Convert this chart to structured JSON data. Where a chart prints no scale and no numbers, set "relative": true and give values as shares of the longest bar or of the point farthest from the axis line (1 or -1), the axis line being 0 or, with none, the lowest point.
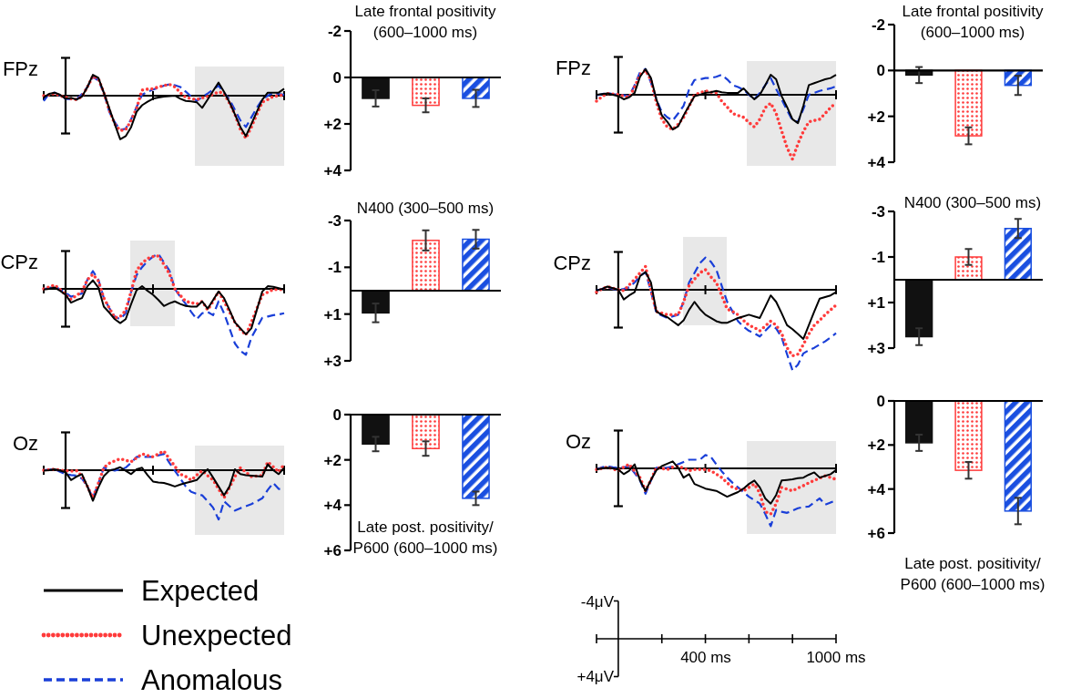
{
  "chart_data": [
    {
      "type": "line",
      "title": "FPz",
      "relative": true,
      "legend": "bottom left",
      "categories": [
        null,
        null,
        null,
        null,
        null,
        null,
        null,
        null,
        null,
        null,
        null,
        null,
        null,
        null,
        null,
        null,
        null,
        null,
        null,
        null,
        null,
        null,
        null,
        null,
        null,
        null,
        null,
        null,
        null,
        null,
        null,
        null,
        null,
        null,
        null,
        null,
        null,
        null,
        null,
        null,
        null,
        null,
        null,
        null,
        null
      ],
      "series": [
        {
          "name": "Expected",
          "color": "#000000",
          "line_style": "solid",
          "values": [
            -0.04,
            0.04,
            0.07,
            0.02,
            -0.07,
            -0.05,
            -0.09,
            -0.02,
            0.2,
            0.48,
            0.41,
            0.07,
            -0.29,
            -0.65,
            -1,
            -0.93,
            -0.72,
            -0.37,
            -0.22,
            -0.14,
            -0.07,
            -0.04,
            -0.02,
            -0.01,
            0,
            -0.07,
            -0.12,
            -0.13,
            -0.15,
            -0.28,
            -0.09,
            0.11,
            0.3,
            0.09,
            -0.15,
            -0.43,
            -0.72,
            -0.93,
            -0.65,
            -0.37,
            -0.09,
            0.07,
            0.07,
            0.07,
            0.16
          ]
        },
        {
          "name": "Unexpected",
          "color": "#ff3b3b",
          "line_style": "dotted",
          "values": [
            0,
            0.02,
            0.05,
            0,
            -0.04,
            -0.07,
            -0.09,
            -0.02,
            0.2,
            0.45,
            0.39,
            0.07,
            -0.33,
            -0.65,
            -0.8,
            -0.78,
            -0.57,
            -0.29,
            0.13,
            0.15,
            0.16,
            0.2,
            0.23,
            0.26,
            0.2,
            0.07,
            -0.04,
            -0.07,
            -0.09,
            -0.05,
            -0.02,
            0.03,
            0.09,
            0.05,
            -0.17,
            -0.43,
            -0.78,
            -0.98,
            -0.72,
            -0.43,
            -0.15,
            -0.09,
            -0.02,
            0,
            0.02
          ]
        },
        {
          "name": "Anomalous",
          "color": "#1a3fd8",
          "line_style": "dashed",
          "values": [
            -0.12,
            0.05,
            0.07,
            0,
            -0.07,
            -0.08,
            -0.09,
            0.04,
            0.2,
            0.43,
            0.35,
            0.07,
            -0.37,
            -0.61,
            -0.78,
            -0.76,
            -0.54,
            -0.26,
            0.02,
            0.09,
            0.14,
            0.18,
            0.23,
            0.26,
            0.24,
            0.2,
            0.09,
            -0.02,
            -0.12,
            -0.03,
            0.05,
            0.14,
            0.23,
            0.07,
            -0.09,
            -0.33,
            -0.57,
            -0.72,
            -0.5,
            -0.28,
            -0.09,
            0,
            0.07,
            0.04,
            0.02
          ]
        }
      ]
    },
    {
      "type": "bar",
      "title": "Late frontal positivity\n(600–1000 ms)",
      "categories": [
        null,
        null,
        null
      ],
      "values": [
        0.9,
        1.2,
        0.9
      ],
      "errors": [
        0.35,
        0.3,
        0.37
      ],
      "colors": [
        "#111111",
        "#ff3b3b",
        "#1a4fe0"
      ],
      "ylim": [
        4,
        -2
      ],
      "yticks": [
        -2,
        0,
        {
          "value": 2,
          "label": "+2"
        },
        {
          "value": 4,
          "label": "+4"
        }
      ]
    },
    {
      "type": "line",
      "title": "FPz",
      "relative": true,
      "categories": [
        null,
        null,
        null,
        null,
        null,
        null,
        null,
        null,
        null,
        null,
        null,
        null,
        null,
        null,
        null,
        null,
        null,
        null,
        null,
        null,
        null,
        null,
        null,
        null,
        null,
        null,
        null,
        null,
        null,
        null,
        null,
        null,
        null,
        null,
        null,
        null,
        null,
        null,
        null,
        null,
        null,
        null,
        null,
        null,
        null
      ],
      "series": [
        {
          "color": "#000000",
          "line_style": "solid",
          "values": [
            0,
            0.01,
            0.02,
            0,
            -0.02,
            -0.07,
            -0.04,
            0.03,
            0.28,
            0.4,
            0.26,
            -0.07,
            -0.32,
            -0.42,
            -0.54,
            -0.49,
            -0.32,
            -0.17,
            -0.02,
            0,
            0.03,
            0.04,
            0.06,
            0.04,
            0.03,
            0.03,
            0.03,
            0.1,
            0.01,
            -0.07,
            0,
            0.15,
            0.31,
            0.24,
            -0.02,
            -0.19,
            -0.38,
            -0.44,
            -0.17,
            0.15,
            0.18,
            0.21,
            0.24,
            0.26,
            0.31
          ]
        },
        {
          "color": "#ff3b3b",
          "line_style": "dotted",
          "values": [
            -0.1,
            -0.03,
            0.02,
            0.01,
            0,
            -0.02,
            -0.04,
            0.12,
            0.31,
            0.38,
            0.23,
            -0.12,
            -0.38,
            -0.5,
            -0.54,
            -0.46,
            -0.35,
            -0.18,
            0,
            0.03,
            0.06,
            0.04,
            0.03,
            -0.1,
            -0.19,
            -0.29,
            -0.32,
            -0.35,
            -0.43,
            -0.5,
            -0.38,
            -0.2,
            -0.13,
            -0.29,
            -0.56,
            -0.82,
            -1,
            -0.76,
            -0.57,
            -0.42,
            -0.4,
            -0.38,
            -0.29,
            -0.2,
            -0.12
          ]
        },
        {
          "color": "#1a3fd8",
          "line_style": "dashed",
          "values": [
            -0.01,
            0.01,
            0.03,
            0.01,
            0,
            -0.01,
            -0.02,
            0.15,
            0.35,
            0.4,
            0.19,
            -0.07,
            -0.27,
            -0.35,
            -0.4,
            -0.29,
            -0.17,
            0.08,
            0.23,
            0.24,
            0.26,
            0.26,
            0.28,
            0.31,
            0.24,
            0.15,
            0.12,
            0.08,
            0,
            -0.07,
            0.03,
            0.15,
            0.26,
            0.09,
            -0.07,
            -0.24,
            -0.4,
            -0.42,
            -0.22,
            0,
            0.03,
            0.06,
            0.08,
            0.1,
            0.13
          ]
        }
      ]
    },
    {
      "type": "bar",
      "title": "Late frontal positivity\n(600–1000 ms)",
      "categories": [
        null,
        null,
        null
      ],
      "values": [
        0.2,
        2.85,
        0.65
      ],
      "errors": [
        0.35,
        0.37,
        0.42
      ],
      "colors": [
        "#111111",
        "#ff3b3b",
        "#1a4fe0"
      ],
      "ylim": [
        4,
        -2
      ],
      "yticks": [
        -2,
        0,
        {
          "value": 2,
          "label": "+2"
        },
        {
          "value": 4,
          "label": "+4"
        }
      ]
    },
    {
      "type": "line",
      "title": "CPz",
      "relative": true,
      "categories": [
        null,
        null,
        null,
        null,
        null,
        null,
        null,
        null,
        null,
        null,
        null,
        null,
        null,
        null,
        null,
        null,
        null,
        null,
        null,
        null,
        null,
        null,
        null,
        null,
        null,
        null,
        null,
        null,
        null,
        null,
        null,
        null,
        null,
        null,
        null,
        null,
        null,
        null,
        null,
        null,
        null,
        null,
        null,
        null,
        null
      ],
      "series": [
        {
          "color": "#000000",
          "line_style": "solid",
          "values": [
            -0.01,
            0,
            0.02,
            -0.03,
            -0.09,
            -0.21,
            -0.17,
            -0.14,
            0.04,
            0.13,
            0.02,
            -0.27,
            -0.36,
            -0.46,
            -0.52,
            -0.46,
            -0.23,
            -0.02,
            0.04,
            -0.03,
            -0.09,
            -0.17,
            -0.26,
            -0.22,
            -0.19,
            -0.23,
            -0.26,
            -0.27,
            -0.27,
            -0.19,
            -0.3,
            -0.17,
            -0.04,
            -0.14,
            -0.32,
            -0.51,
            -0.6,
            -0.69,
            -0.6,
            -0.32,
            -0.04,
            0.04,
            0.03,
            0.01,
            -0.01
          ]
        },
        {
          "color": "#ff3b3b",
          "line_style": "dotted",
          "values": [
            0,
            0.03,
            0.06,
            -0.01,
            -0.09,
            -0.16,
            -0.1,
            -0.04,
            0.14,
            0.22,
            0.12,
            -0.14,
            -0.29,
            -0.44,
            -0.42,
            -0.33,
            -0.04,
            0.28,
            0.39,
            0.46,
            0.49,
            0.5,
            0.37,
            0.23,
            0,
            -0.1,
            -0.19,
            -0.21,
            -0.23,
            -0.19,
            -0.32,
            -0.19,
            -0.04,
            -0.19,
            -0.35,
            -0.51,
            -0.62,
            -0.7,
            -0.51,
            -0.3,
            -0.09,
            -0.05,
            -0.01,
            -0.01,
            -0.01
          ]
        },
        {
          "color": "#1a3fd8",
          "line_style": "dashed",
          "values": [
            0,
            0.01,
            0.04,
            -0.01,
            -0.06,
            -0.12,
            -0.09,
            -0.07,
            0.14,
            0.27,
            0.14,
            -0.14,
            -0.29,
            -0.42,
            -0.46,
            -0.37,
            -0.04,
            0.21,
            0.33,
            0.42,
            0.49,
            0.53,
            0.4,
            0.28,
            0,
            -0.12,
            -0.23,
            -0.35,
            -0.46,
            -0.37,
            -0.35,
            -0.4,
            -0.19,
            -0.37,
            -0.6,
            -0.83,
            -0.94,
            -1,
            -0.74,
            -0.59,
            -0.44,
            -0.42,
            -0.4,
            -0.39,
            -0.37
          ]
        }
      ]
    },
    {
      "type": "bar",
      "title": "N400 (300–500 ms)",
      "categories": [
        null,
        null,
        null
      ],
      "values": [
        0.95,
        -2.15,
        -2.2
      ],
      "errors": [
        0.4,
        0.43,
        0.4
      ],
      "colors": [
        "#111111",
        "#ff3b3b",
        "#1a4fe0"
      ],
      "ylim": [
        3,
        -3
      ],
      "yticks": [
        -3,
        -1,
        {
          "value": 1,
          "label": "+1"
        },
        {
          "value": 3,
          "label": "+3"
        }
      ]
    },
    {
      "type": "line",
      "title": "CPz",
      "relative": true,
      "categories": [
        null,
        null,
        null,
        null,
        null,
        null,
        null,
        null,
        null,
        null,
        null,
        null,
        null,
        null,
        null,
        null,
        null,
        null,
        null,
        null,
        null,
        null,
        null,
        null,
        null,
        null,
        null,
        null,
        null,
        null,
        null,
        null,
        null,
        null,
        null,
        null,
        null,
        null,
        null,
        null,
        null,
        null,
        null,
        null,
        null
      ],
      "series": [
        {
          "color": "#000000",
          "line_style": "solid",
          "values": [
            -0.01,
            0.01,
            0.04,
            0.02,
            0,
            -0.12,
            -0.07,
            -0.03,
            0.17,
            0.22,
            0.09,
            -0.27,
            -0.31,
            -0.34,
            -0.39,
            -0.44,
            -0.38,
            -0.25,
            -0.15,
            -0.24,
            -0.31,
            -0.35,
            -0.39,
            -0.41,
            -0.41,
            -0.38,
            -0.35,
            -0.33,
            -0.31,
            -0.33,
            -0.35,
            -0.21,
            -0.07,
            -0.15,
            -0.29,
            -0.44,
            -0.49,
            -0.55,
            -0.61,
            -0.44,
            -0.27,
            -0.11,
            -0.09,
            -0.07,
            -0.03
          ]
        },
        {
          "color": "#ff3b3b",
          "line_style": "dotted",
          "values": [
            -0.03,
            0.01,
            0.04,
            0.02,
            0,
            -0.01,
            0.06,
            0.13,
            0.21,
            0.29,
            0,
            -0.27,
            -0.29,
            -0.31,
            -0.31,
            -0.31,
            -0.15,
            0.05,
            0.13,
            0.21,
            0.25,
            0.16,
            0.09,
            -0.07,
            -0.24,
            -0.27,
            -0.31,
            -0.38,
            -0.44,
            -0.47,
            -0.51,
            -0.45,
            -0.39,
            -0.44,
            -0.54,
            -0.72,
            -0.82,
            -0.8,
            -0.68,
            -0.55,
            -0.44,
            -0.38,
            -0.31,
            -0.25,
            -0.19
          ]
        },
        {
          "color": "#1a3fd8",
          "line_style": "dashed",
          "values": [
            -0.01,
            0.01,
            0.03,
            0.01,
            0,
            0.01,
            0.03,
            0.09,
            0.17,
            0.22,
            -0.02,
            -0.29,
            -0.32,
            -0.35,
            -0.33,
            -0.31,
            -0.15,
            0.09,
            0.21,
            0.33,
            0.4,
            0.35,
            0.25,
            0.05,
            -0.15,
            -0.27,
            -0.39,
            -0.46,
            -0.51,
            -0.54,
            -0.58,
            -0.51,
            -0.44,
            -0.48,
            -0.59,
            -0.8,
            -1,
            -0.93,
            -0.79,
            -0.75,
            -0.72,
            -0.68,
            -0.64,
            -0.59,
            -0.54
          ]
        }
      ]
    },
    {
      "type": "bar",
      "title": "N400 (300–500 ms)",
      "categories": [
        null,
        null,
        null
      ],
      "values": [
        2.5,
        -1.0,
        -2.25
      ],
      "errors": [
        0.37,
        0.35,
        0.42
      ],
      "colors": [
        "#111111",
        "#ff3b3b",
        "#1a4fe0"
      ],
      "ylim": [
        3,
        -3
      ],
      "yticks": [
        -3,
        -1,
        {
          "value": 1,
          "label": "+1"
        },
        {
          "value": 3,
          "label": "+3"
        }
      ]
    },
    {
      "type": "line",
      "title": "Oz",
      "relative": true,
      "categories": [
        null,
        null,
        null,
        null,
        null,
        null,
        null,
        null,
        null,
        null,
        null,
        null,
        null,
        null,
        null,
        null,
        null,
        null,
        null,
        null,
        null,
        null,
        null,
        null,
        null,
        null,
        null,
        null,
        null,
        null,
        null,
        null,
        null,
        null,
        null,
        null,
        null,
        null,
        null,
        null,
        null,
        null,
        null,
        null,
        null
      ],
      "series": [
        {
          "color": "#000000",
          "line_style": "solid",
          "values": [
            -0.01,
            0,
            0.02,
            -0.01,
            -0.04,
            -0.2,
            -0.13,
            -0.08,
            -0.33,
            -0.62,
            -0.35,
            -0.12,
            -0.01,
            0.02,
            0.06,
            -0.01,
            -0.08,
            0.02,
            0.05,
            -0.1,
            -0.23,
            -0.25,
            -0.26,
            -0.29,
            -0.33,
            -0.29,
            -0.26,
            -0.23,
            -0.2,
            -0.08,
            0.02,
            -0.15,
            -0.33,
            -0.51,
            -0.33,
            0.02,
            -0.08,
            -0.1,
            -0.11,
            -0.12,
            -0.13,
            0.12,
            0,
            -0.08,
            0.05
          ]
        },
        {
          "color": "#ff3b3b",
          "line_style": "dotted",
          "values": [
            0,
            0.01,
            0.02,
            0,
            -0.01,
            -0.02,
            -0.01,
            -0.12,
            -0.33,
            -0.56,
            -0.27,
            0.05,
            0.14,
            0.19,
            0.23,
            0.2,
            0.17,
            0.25,
            0.33,
            0.3,
            0.27,
            0.33,
            0.39,
            0.23,
            0.08,
            -0.08,
            -0.13,
            -0.2,
            -0.1,
            -0.01,
            -0.11,
            -0.2,
            -0.38,
            -0.56,
            -0.35,
            -0.13,
            0.05,
            -0.04,
            -0.13,
            -0.12,
            -0.11,
            0.17,
            0.07,
            -0.04,
            0.12
          ]
        },
        {
          "color": "#1a3fd8",
          "line_style": "dashed",
          "values": [
            0,
            0.01,
            0.02,
            -0.03,
            -0.08,
            -0.1,
            -0.11,
            -0.17,
            -0.33,
            -0.56,
            -0.27,
            0.05,
            0.02,
            -0.01,
            0.02,
            0.05,
            0.15,
            0.27,
            0.27,
            0.27,
            0.27,
            0.3,
            0.33,
            0.15,
            -0.01,
            -0.17,
            -0.33,
            -0.44,
            -0.48,
            -0.51,
            -0.63,
            -0.76,
            -1,
            -0.63,
            -0.73,
            -0.82,
            -0.77,
            -0.73,
            -0.69,
            -0.63,
            -0.57,
            -0.4,
            -0.26,
            -0.38,
            -0.38
          ]
        }
      ]
    },
    {
      "type": "bar",
      "title": "Late post. positivity/\nP600 (600–1000 ms)",
      "categories": [
        null,
        null,
        null
      ],
      "values": [
        1.3,
        1.5,
        3.7
      ],
      "errors": [
        0.32,
        0.32,
        0.3
      ],
      "colors": [
        "#111111",
        "#ff3b3b",
        "#1a4fe0"
      ],
      "ylim": [
        6,
        0
      ],
      "yticks": [
        0,
        {
          "value": 2,
          "label": "+2"
        },
        {
          "value": 4,
          "label": "+4"
        },
        {
          "value": 6,
          "label": "+6"
        }
      ]
    },
    {
      "type": "line",
      "title": "Oz",
      "relative": true,
      "categories": [
        null,
        null,
        null,
        null,
        null,
        null,
        null,
        null,
        null,
        null,
        null,
        null,
        null,
        null,
        null,
        null,
        null,
        null,
        null,
        null,
        null,
        null,
        null,
        null,
        null,
        null,
        null,
        null,
        null,
        null,
        null,
        null,
        null,
        null,
        null,
        null,
        null,
        null,
        null,
        null,
        null,
        null,
        null,
        null,
        null
      ],
      "series": [
        {
          "color": "#000000",
          "line_style": "solid",
          "values": [
            -0.02,
            0,
            0.01,
            0,
            -0.02,
            -0.1,
            -0.04,
            0.07,
            -0.21,
            -0.39,
            -0.2,
            -0.03,
            0.04,
            0.08,
            0.12,
            0.01,
            -0.16,
            -0.1,
            -0.27,
            -0.31,
            -0.35,
            -0.37,
            -0.39,
            -0.44,
            -0.49,
            -0.45,
            -0.41,
            -0.35,
            -0.27,
            -0.21,
            -0.33,
            -0.52,
            -0.61,
            -0.46,
            -0.21,
            -0.2,
            -0.19,
            -0.17,
            -0.16,
            -0.11,
            -0.07,
            -0.16,
            -0.13,
            -0.1,
            -0.03
          ]
        },
        {
          "color": "#ff3b3b",
          "line_style": "dotted",
          "values": [
            -0.02,
            0,
            0.02,
            -0.01,
            -0.04,
            0.02,
            0.07,
            -0.05,
            -0.16,
            -0.39,
            -0.2,
            0.01,
            0,
            -0.02,
            0.02,
            0.04,
            0,
            -0.04,
            -0.02,
            -0.02,
            -0.02,
            -0.04,
            -0.1,
            -0.16,
            -0.25,
            -0.33,
            -0.36,
            -0.39,
            -0.33,
            -0.27,
            -0.43,
            -0.75,
            -0.79,
            -0.61,
            -0.33,
            -0.36,
            -0.39,
            -0.34,
            -0.3,
            -0.25,
            -0.21,
            -0.17,
            -0.13,
            -0.16,
            -0.19
          ]
        },
        {
          "color": "#1a3fd8",
          "line_style": "dashed",
          "values": [
            -0.02,
            0.02,
            0.04,
            0.02,
            0.01,
            0.02,
            0.04,
            -0.08,
            -0.21,
            -0.44,
            -0.21,
            0.01,
            0.01,
            0.01,
            0.03,
            0.07,
            0.11,
            0.15,
            0.15,
            0.15,
            0.23,
            0.2,
            0.07,
            -0.05,
            -0.16,
            -0.25,
            -0.33,
            -0.41,
            -0.49,
            -0.55,
            -0.61,
            -0.79,
            -1,
            -0.72,
            -0.75,
            -0.77,
            -0.73,
            -0.69,
            -0.67,
            -0.66,
            -0.59,
            -0.52,
            -0.63,
            -0.59,
            -0.56
          ]
        }
      ]
    },
    {
      "type": "bar",
      "title": "Late post. positivity/\nP600 (600–1000 ms)",
      "categories": [
        null,
        null,
        null
      ],
      "values": [
        1.9,
        3.15,
        5.0
      ],
      "errors": [
        0.37,
        0.38,
        0.6
      ],
      "colors": [
        "#111111",
        "#ff3b3b",
        "#1a4fe0"
      ],
      "ylim": [
        6,
        0
      ],
      "yticks": [
        0,
        {
          "value": 2,
          "label": "+2"
        },
        {
          "value": 4,
          "label": "+4"
        },
        {
          "value": 6,
          "label": "+6"
        }
      ]
    },
    {
      "type": "other",
      "annotations": [
        "-4μV",
        "+4μV",
        "400 ms",
        "1000 ms"
      ]
    }
  ]
}
